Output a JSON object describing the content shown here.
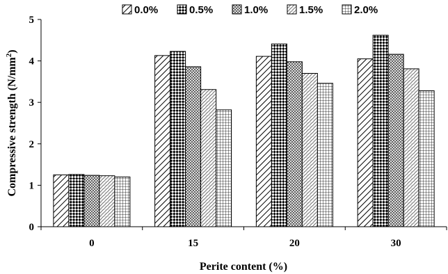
{
  "chart_data": {
    "type": "bar",
    "title": "",
    "xlabel": "Perite content (%)",
    "ylabel": "Compressive strength (N/mm",
    "ylabel_sup": "2",
    "ylabel_end": ")",
    "ylim": [
      0,
      5
    ],
    "yticks": [
      "0",
      "1",
      "2",
      "3",
      "4",
      "5"
    ],
    "categories": [
      "0",
      "15",
      "20",
      "30"
    ],
    "legend_position": "top",
    "grid": false,
    "series": [
      {
        "name": "0.0%",
        "pattern": "diag-right",
        "values": [
          1.25,
          4.13,
          4.11,
          4.05
        ]
      },
      {
        "name": "0.5%",
        "pattern": "checker",
        "values": [
          1.26,
          4.23,
          4.41,
          4.62
        ]
      },
      {
        "name": "1.0%",
        "pattern": "crosshatch",
        "values": [
          1.24,
          3.86,
          3.98,
          4.16
        ]
      },
      {
        "name": "1.5%",
        "pattern": "diag-light",
        "values": [
          1.23,
          3.31,
          3.7,
          3.81
        ]
      },
      {
        "name": "2.0%",
        "pattern": "grid",
        "values": [
          1.2,
          2.82,
          3.46,
          3.28
        ]
      }
    ]
  }
}
